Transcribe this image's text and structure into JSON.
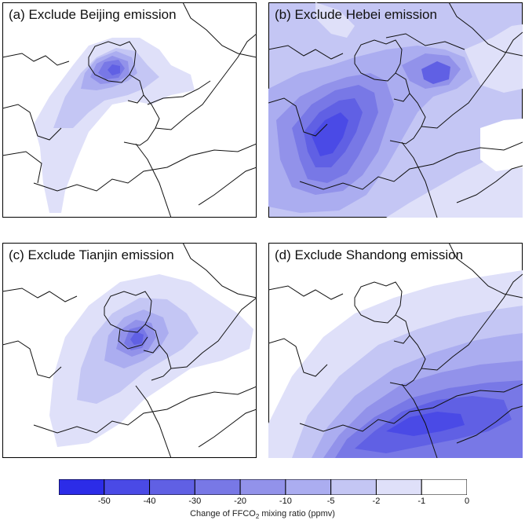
{
  "panels": [
    {
      "id": "a",
      "title": "(a) Exclude Beijing emission"
    },
    {
      "id": "b",
      "title": "(b) Exclude Hebei emission"
    },
    {
      "id": "c",
      "title": "(c) Exclude Tianjin emission"
    },
    {
      "id": "d",
      "title": "(d) Exclude Shandong emission"
    }
  ],
  "colorbar": {
    "levels": [
      -50,
      -40,
      -30,
      -20,
      -10,
      -5,
      -2,
      -1,
      0
    ],
    "tick_labels": [
      "-50",
      "-40",
      "-30",
      "-20",
      "-10",
      "-5",
      "-2",
      "-1",
      "0"
    ],
    "colors": [
      "#2c2ce8",
      "#4a4ae6",
      "#6060e4",
      "#7878e6",
      "#9292ea",
      "#abadf0",
      "#c4c6f4",
      "#dfe0f9",
      "#ffffff"
    ],
    "label_prefix": "Change of FFCO",
    "label_sub": "2",
    "label_suffix": " mixing ratio (ppmv)"
  }
}
